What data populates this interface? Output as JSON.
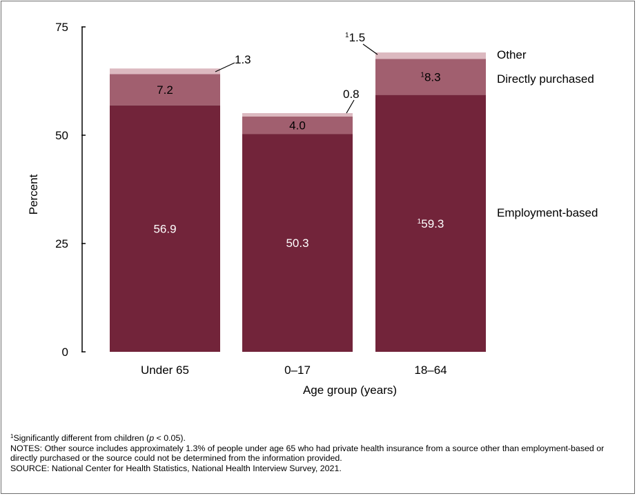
{
  "chart_data": {
    "type": "bar",
    "stacked": true,
    "categories": [
      "Under 65",
      "0–17",
      "18–64"
    ],
    "series": [
      {
        "name": "Employment-based",
        "values": [
          56.9,
          50.3,
          59.3
        ],
        "labels": [
          "56.9",
          "50.3",
          "59.3"
        ],
        "label_marks": [
          "",
          "",
          "1"
        ],
        "color": "#72243a"
      },
      {
        "name": "Directly purchased",
        "values": [
          7.2,
          4.0,
          8.3
        ],
        "labels": [
          "7.2",
          "4.0",
          "8.3"
        ],
        "label_marks": [
          "",
          "",
          "1"
        ],
        "color": "#a15f6f"
      },
      {
        "name": "Other",
        "values": [
          1.3,
          0.8,
          1.5
        ],
        "labels": [
          "1.3",
          "0.8",
          "1.5"
        ],
        "label_marks": [
          "",
          "",
          "1"
        ],
        "color": "#dcb9c0"
      }
    ],
    "xlabel": "Age group (years)",
    "ylabel": "Percent",
    "ylim": [
      0,
      75
    ],
    "yticks": [
      "0",
      "25",
      "50",
      "75"
    ],
    "legend_placement": "right, labels beside the last bar",
    "grid": false
  },
  "notes": {
    "footnote_mark": "1",
    "footnote_text": "Significantly different from children (",
    "footnote_p": "p",
    "footnote_tail": " < 0.05).",
    "notes_text": "NOTES: Other source includes approximately 1.3% of people under age 65 who had private health insurance from a source other than employment-based or directly purchased or the source could not be determined from the information provided.",
    "source_text": "SOURCE: National Center for Health Statistics, National Health Interview Survey, 2021."
  }
}
